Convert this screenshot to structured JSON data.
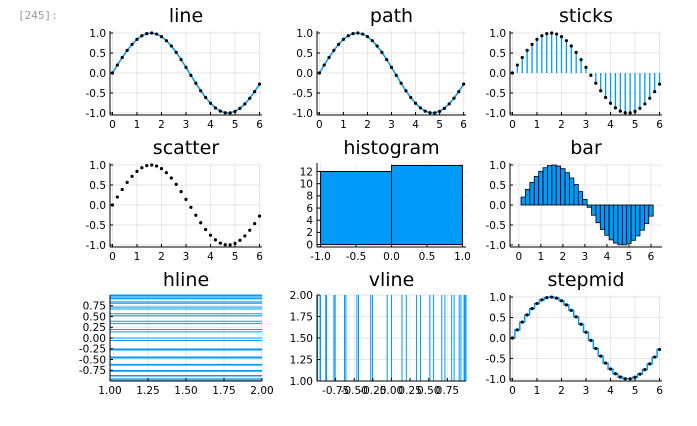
{
  "notebook": {
    "cell_prompt": "[245]:"
  },
  "colors": {
    "series": "#009AFA",
    "marker": "#000000",
    "grid": "#E6E6E6"
  },
  "chart_data": [
    {
      "type": "line",
      "title": "line",
      "x": [
        0,
        0.2,
        0.4,
        0.6,
        0.8,
        1.0,
        1.2,
        1.4,
        1.6,
        1.8,
        2.0,
        2.2,
        2.4,
        2.6,
        2.8,
        3.0,
        3.2,
        3.4,
        3.6,
        3.8,
        4.0,
        4.2,
        4.4,
        4.6,
        4.8,
        5.0,
        5.2,
        5.4,
        5.6,
        5.8,
        6.0
      ],
      "y": [
        0.0,
        0.199,
        0.389,
        0.565,
        0.717,
        0.841,
        0.932,
        0.985,
        1.0,
        0.974,
        0.909,
        0.808,
        0.675,
        0.516,
        0.335,
        0.141,
        -0.058,
        -0.256,
        -0.443,
        -0.612,
        -0.757,
        -0.872,
        -0.952,
        -0.994,
        -0.996,
        -0.959,
        -0.883,
        -0.773,
        -0.631,
        -0.465,
        -0.279
      ],
      "markers": true,
      "xlim": [
        -0.1,
        6.1
      ],
      "ylim": [
        -1.05,
        1.05
      ],
      "xticks": [
        {
          "v": 0,
          "label": "0"
        },
        {
          "v": 1,
          "label": "1"
        },
        {
          "v": 2,
          "label": "2"
        },
        {
          "v": 3,
          "label": "3"
        },
        {
          "v": 4,
          "label": "4"
        },
        {
          "v": 5,
          "label": "5"
        },
        {
          "v": 6,
          "label": "6"
        }
      ],
      "yticks": [
        {
          "v": -1,
          "label": "-1.0"
        },
        {
          "v": -0.5,
          "label": "-0.5"
        },
        {
          "v": 0,
          "label": "0.0"
        },
        {
          "v": 0.5,
          "label": "0.5"
        },
        {
          "v": 1,
          "label": "1.0"
        }
      ],
      "grid": true
    },
    {
      "type": "line",
      "title": "path",
      "x": [
        0,
        0.2,
        0.4,
        0.6,
        0.8,
        1.0,
        1.2,
        1.4,
        1.6,
        1.8,
        2.0,
        2.2,
        2.4,
        2.6,
        2.8,
        3.0,
        3.2,
        3.4,
        3.6,
        3.8,
        4.0,
        4.2,
        4.4,
        4.6,
        4.8,
        5.0,
        5.2,
        5.4,
        5.6,
        5.8,
        6.0
      ],
      "y": [
        0.0,
        0.199,
        0.389,
        0.565,
        0.717,
        0.841,
        0.932,
        0.985,
        1.0,
        0.974,
        0.909,
        0.808,
        0.675,
        0.516,
        0.335,
        0.141,
        -0.058,
        -0.256,
        -0.443,
        -0.612,
        -0.757,
        -0.872,
        -0.952,
        -0.994,
        -0.996,
        -0.959,
        -0.883,
        -0.773,
        -0.631,
        -0.465,
        -0.279
      ],
      "markers": true,
      "xlim": [
        -0.1,
        6.1
      ],
      "ylim": [
        -1.05,
        1.05
      ],
      "xticks": [
        {
          "v": 0,
          "label": "0"
        },
        {
          "v": 1,
          "label": "1"
        },
        {
          "v": 2,
          "label": "2"
        },
        {
          "v": 3,
          "label": "3"
        },
        {
          "v": 4,
          "label": "4"
        },
        {
          "v": 5,
          "label": "5"
        },
        {
          "v": 6,
          "label": "6"
        }
      ],
      "yticks": [
        {
          "v": -1,
          "label": "-1.0"
        },
        {
          "v": -0.5,
          "label": "-0.5"
        },
        {
          "v": 0,
          "label": "0.0"
        },
        {
          "v": 0.5,
          "label": "0.5"
        },
        {
          "v": 1,
          "label": "1.0"
        }
      ],
      "grid": true
    },
    {
      "type": "sticks",
      "title": "sticks",
      "x": [
        0,
        0.2,
        0.4,
        0.6,
        0.8,
        1.0,
        1.2,
        1.4,
        1.6,
        1.8,
        2.0,
        2.2,
        2.4,
        2.6,
        2.8,
        3.0,
        3.2,
        3.4,
        3.6,
        3.8,
        4.0,
        4.2,
        4.4,
        4.6,
        4.8,
        5.0,
        5.2,
        5.4,
        5.6,
        5.8,
        6.0
      ],
      "y": [
        0.0,
        0.199,
        0.389,
        0.565,
        0.717,
        0.841,
        0.932,
        0.985,
        1.0,
        0.974,
        0.909,
        0.808,
        0.675,
        0.516,
        0.335,
        0.141,
        -0.058,
        -0.256,
        -0.443,
        -0.612,
        -0.757,
        -0.872,
        -0.952,
        -0.994,
        -0.996,
        -0.959,
        -0.883,
        -0.773,
        -0.631,
        -0.465,
        -0.279
      ],
      "markers": true,
      "xlim": [
        -0.1,
        6.1
      ],
      "ylim": [
        -1.05,
        1.05
      ],
      "xticks": [
        {
          "v": 0,
          "label": "0"
        },
        {
          "v": 1,
          "label": "1"
        },
        {
          "v": 2,
          "label": "2"
        },
        {
          "v": 3,
          "label": "3"
        },
        {
          "v": 4,
          "label": "4"
        },
        {
          "v": 5,
          "label": "5"
        },
        {
          "v": 6,
          "label": "6"
        }
      ],
      "yticks": [
        {
          "v": -1,
          "label": "-1.0"
        },
        {
          "v": -0.5,
          "label": "-0.5"
        },
        {
          "v": 0,
          "label": "0.0"
        },
        {
          "v": 0.5,
          "label": "0.5"
        },
        {
          "v": 1,
          "label": "1.0"
        }
      ],
      "grid": true
    },
    {
      "type": "scatter",
      "title": "scatter",
      "x": [
        0,
        0.2,
        0.4,
        0.6,
        0.8,
        1.0,
        1.2,
        1.4,
        1.6,
        1.8,
        2.0,
        2.2,
        2.4,
        2.6,
        2.8,
        3.0,
        3.2,
        3.4,
        3.6,
        3.8,
        4.0,
        4.2,
        4.4,
        4.6,
        4.8,
        5.0,
        5.2,
        5.4,
        5.6,
        5.8,
        6.0
      ],
      "y": [
        0.0,
        0.199,
        0.389,
        0.565,
        0.717,
        0.841,
        0.932,
        0.985,
        1.0,
        0.974,
        0.909,
        0.808,
        0.675,
        0.516,
        0.335,
        0.141,
        -0.058,
        -0.256,
        -0.443,
        -0.612,
        -0.757,
        -0.872,
        -0.952,
        -0.994,
        -0.996,
        -0.959,
        -0.883,
        -0.773,
        -0.631,
        -0.465,
        -0.279
      ],
      "markers": true,
      "xlim": [
        -0.1,
        6.1
      ],
      "ylim": [
        -1.05,
        1.05
      ],
      "xticks": [
        {
          "v": 0,
          "label": "0"
        },
        {
          "v": 1,
          "label": "1"
        },
        {
          "v": 2,
          "label": "2"
        },
        {
          "v": 3,
          "label": "3"
        },
        {
          "v": 4,
          "label": "4"
        },
        {
          "v": 5,
          "label": "5"
        },
        {
          "v": 6,
          "label": "6"
        }
      ],
      "yticks": [
        {
          "v": -1,
          "label": "-1.0"
        },
        {
          "v": -0.5,
          "label": "-0.5"
        },
        {
          "v": 0,
          "label": "0.0"
        },
        {
          "v": 0.5,
          "label": "0.5"
        },
        {
          "v": 1,
          "label": "1.0"
        }
      ],
      "grid": true
    },
    {
      "type": "histogram",
      "title": "histogram",
      "bins": [
        {
          "from": -1.0,
          "to": 0.0,
          "count": 12
        },
        {
          "from": 0.0,
          "to": 1.0,
          "count": 13
        }
      ],
      "xlim": [
        -1.05,
        1.05
      ],
      "ylim": [
        -0.4,
        13.4
      ],
      "xticks": [
        {
          "v": -1,
          "label": "-1.0"
        },
        {
          "v": -0.5,
          "label": "-0.5"
        },
        {
          "v": 0,
          "label": "0.0"
        },
        {
          "v": 0.5,
          "label": "0.5"
        },
        {
          "v": 1,
          "label": "1.0"
        }
      ],
      "yticks": [
        {
          "v": 0,
          "label": "0"
        },
        {
          "v": 2,
          "label": "2"
        },
        {
          "v": 4,
          "label": "4"
        },
        {
          "v": 6,
          "label": "6"
        },
        {
          "v": 8,
          "label": "8"
        },
        {
          "v": 10,
          "label": "10"
        },
        {
          "v": 12,
          "label": "12"
        }
      ],
      "grid": true
    },
    {
      "type": "bar",
      "title": "bar",
      "x": [
        0,
        0.2,
        0.4,
        0.6,
        0.8,
        1.0,
        1.2,
        1.4,
        1.6,
        1.8,
        2.0,
        2.2,
        2.4,
        2.6,
        2.8,
        3.0,
        3.2,
        3.4,
        3.6,
        3.8,
        4.0,
        4.2,
        4.4,
        4.6,
        4.8,
        5.0,
        5.2,
        5.4,
        5.6,
        5.8,
        6.0
      ],
      "y": [
        0.0,
        0.199,
        0.389,
        0.565,
        0.717,
        0.841,
        0.932,
        0.985,
        1.0,
        0.974,
        0.909,
        0.808,
        0.675,
        0.516,
        0.335,
        0.141,
        -0.058,
        -0.256,
        -0.443,
        -0.612,
        -0.757,
        -0.872,
        -0.952,
        -0.994,
        -0.996,
        -0.959,
        -0.883,
        -0.773,
        -0.631,
        -0.465,
        -0.279
      ],
      "bar_width": 0.2,
      "xlim": [
        -0.4,
        6.5
      ],
      "ylim": [
        -1.05,
        1.05
      ],
      "xticks": [
        {
          "v": 0,
          "label": "0"
        },
        {
          "v": 1,
          "label": "1"
        },
        {
          "v": 2,
          "label": "2"
        },
        {
          "v": 3,
          "label": "3"
        },
        {
          "v": 4,
          "label": "4"
        },
        {
          "v": 5,
          "label": "5"
        },
        {
          "v": 6,
          "label": "6"
        }
      ],
      "yticks": [
        {
          "v": -1,
          "label": "-1.0"
        },
        {
          "v": -0.5,
          "label": "-0.5"
        },
        {
          "v": 0,
          "label": "0.0"
        },
        {
          "v": 0.5,
          "label": "0.5"
        },
        {
          "v": 1,
          "label": "1.0"
        }
      ],
      "grid": true
    },
    {
      "type": "hline",
      "title": "hline",
      "y": [
        0.0,
        0.199,
        0.389,
        0.565,
        0.717,
        0.841,
        0.932,
        0.985,
        1.0,
        0.974,
        0.909,
        0.808,
        0.675,
        0.516,
        0.335,
        0.141,
        -0.058,
        -0.256,
        -0.443,
        -0.612,
        -0.757,
        -0.872,
        -0.952,
        -0.994,
        -0.996,
        -0.959,
        -0.883,
        -0.773,
        -0.631,
        -0.465,
        -0.279
      ],
      "xlim": [
        1.0,
        2.0
      ],
      "ylim": [
        -1.0,
        1.0
      ],
      "xticks": [
        {
          "v": 1.0,
          "label": "1.00"
        },
        {
          "v": 1.25,
          "label": "1.25"
        },
        {
          "v": 1.5,
          "label": "1.50"
        },
        {
          "v": 1.75,
          "label": "1.75"
        },
        {
          "v": 2.0,
          "label": "2.00"
        }
      ],
      "yticks": [
        {
          "v": -0.75,
          "label": "-0.75"
        },
        {
          "v": -0.5,
          "label": "-0.50"
        },
        {
          "v": -0.25,
          "label": "-0.25"
        },
        {
          "v": 0,
          "label": "0.00"
        },
        {
          "v": 0.25,
          "label": "0.25"
        },
        {
          "v": 0.5,
          "label": "0.50"
        },
        {
          "v": 0.75,
          "label": "0.75"
        }
      ],
      "grid": true
    },
    {
      "type": "vline",
      "title": "vline",
      "x": [
        0.0,
        0.199,
        0.389,
        0.565,
        0.717,
        0.841,
        0.932,
        0.985,
        1.0,
        0.974,
        0.909,
        0.808,
        0.675,
        0.516,
        0.335,
        0.141,
        -0.058,
        -0.256,
        -0.443,
        -0.612,
        -0.757,
        -0.872,
        -0.952,
        -0.994,
        -0.996,
        -0.959,
        -0.883,
        -0.773,
        -0.631,
        -0.465,
        -0.279
      ],
      "xlim": [
        -1.0,
        1.0
      ],
      "ylim": [
        1.0,
        2.0
      ],
      "xticks": [
        {
          "v": -0.75,
          "label": "-0.75"
        },
        {
          "v": -0.5,
          "label": "-0.50"
        },
        {
          "v": -0.25,
          "label": "-0.25"
        },
        {
          "v": 0,
          "label": "0.00"
        },
        {
          "v": 0.25,
          "label": "0.25"
        },
        {
          "v": 0.5,
          "label": "0.50"
        },
        {
          "v": 0.75,
          "label": "0.75"
        }
      ],
      "yticks": [
        {
          "v": 1.0,
          "label": "1.00"
        },
        {
          "v": 1.25,
          "label": "1.25"
        },
        {
          "v": 1.5,
          "label": "1.50"
        },
        {
          "v": 1.75,
          "label": "1.75"
        },
        {
          "v": 2.0,
          "label": "2.00"
        }
      ],
      "grid": true
    },
    {
      "type": "stepmid",
      "title": "stepmid",
      "x": [
        0,
        0.2,
        0.4,
        0.6,
        0.8,
        1.0,
        1.2,
        1.4,
        1.6,
        1.8,
        2.0,
        2.2,
        2.4,
        2.6,
        2.8,
        3.0,
        3.2,
        3.4,
        3.6,
        3.8,
        4.0,
        4.2,
        4.4,
        4.6,
        4.8,
        5.0,
        5.2,
        5.4,
        5.6,
        5.8,
        6.0
      ],
      "y": [
        0.0,
        0.199,
        0.389,
        0.565,
        0.717,
        0.841,
        0.932,
        0.985,
        1.0,
        0.974,
        0.909,
        0.808,
        0.675,
        0.516,
        0.335,
        0.141,
        -0.058,
        -0.256,
        -0.443,
        -0.612,
        -0.757,
        -0.872,
        -0.952,
        -0.994,
        -0.996,
        -0.959,
        -0.883,
        -0.773,
        -0.631,
        -0.465,
        -0.279
      ],
      "markers": true,
      "xlim": [
        -0.1,
        6.1
      ],
      "ylim": [
        -1.05,
        1.05
      ],
      "xticks": [
        {
          "v": 0,
          "label": "0"
        },
        {
          "v": 1,
          "label": "1"
        },
        {
          "v": 2,
          "label": "2"
        },
        {
          "v": 3,
          "label": "3"
        },
        {
          "v": 4,
          "label": "4"
        },
        {
          "v": 5,
          "label": "5"
        },
        {
          "v": 6,
          "label": "6"
        }
      ],
      "yticks": [
        {
          "v": -1,
          "label": "-1.0"
        },
        {
          "v": -0.5,
          "label": "-0.5"
        },
        {
          "v": 0,
          "label": "0.0"
        },
        {
          "v": 0.5,
          "label": "0.5"
        },
        {
          "v": 1,
          "label": "1.0"
        }
      ],
      "grid": true
    }
  ]
}
